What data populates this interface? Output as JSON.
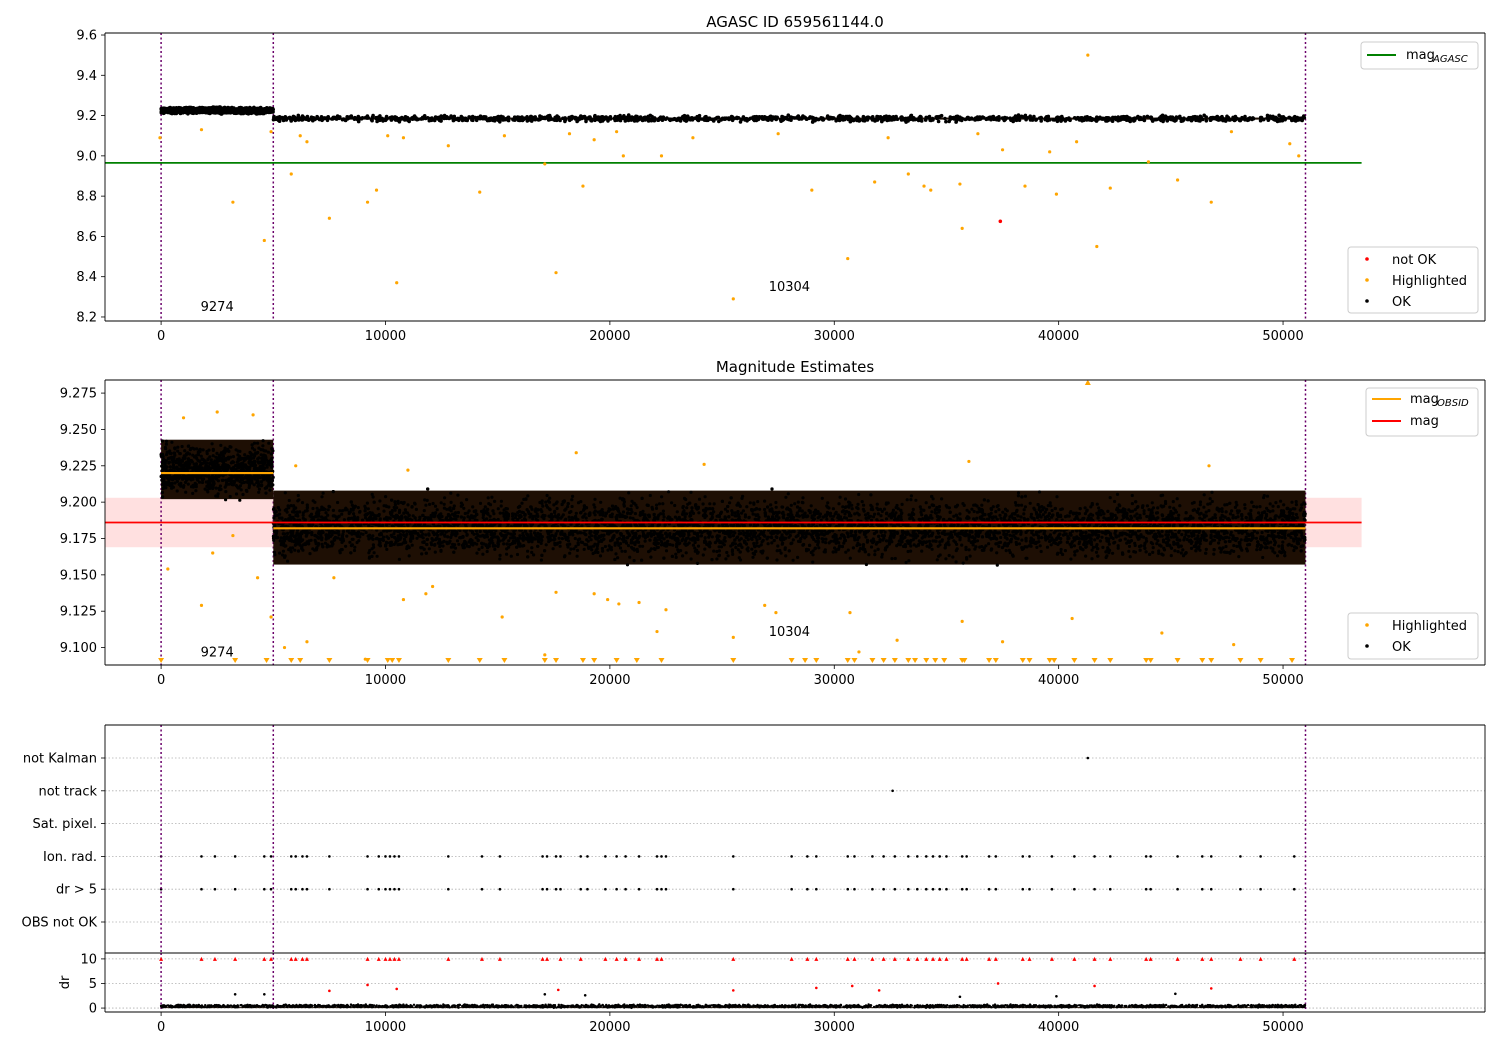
{
  "chart_data": [
    {
      "type": "scatter",
      "title": "AGASC ID 659561144.0",
      "xlim": [
        -2500,
        59000
      ],
      "ylim": [
        8.18,
        9.61
      ],
      "x_ticks": [
        0,
        10000,
        20000,
        30000,
        40000,
        50000
      ],
      "y_ticks": [
        8.2,
        8.4,
        8.6,
        8.8,
        9.0,
        9.2,
        9.4,
        9.6
      ],
      "y_tick_decimals": 1,
      "grid": false,
      "line_legend": {
        "placement": "top-right",
        "entries": [
          {
            "label": "mag",
            "sub": "AGASC",
            "color": "#008000"
          }
        ]
      },
      "point_legend": {
        "placement": "bottom-right",
        "entries": [
          {
            "label": "not OK",
            "color": "#ff0000"
          },
          {
            "label": "Highlighted",
            "color": "#ffa500"
          },
          {
            "label": "OK",
            "color": "#000000"
          }
        ]
      },
      "obsid_boundaries": [
        0,
        5000,
        51000
      ],
      "obsid_labels": [
        {
          "text": "9274",
          "x": 2500,
          "y": 8.23
        },
        {
          "text": "10304",
          "x": 28000,
          "y": 8.33
        }
      ],
      "reference_lines": [
        {
          "name": "mag_AGASC",
          "y": 8.965,
          "x": [
            -2500,
            53500
          ],
          "color": "#008000"
        }
      ],
      "ok_band": [
        {
          "x": [
            0,
            5000
          ],
          "y": [
            9.205,
            9.245
          ]
        },
        {
          "x": [
            5000,
            51000
          ],
          "y": [
            9.165,
            9.205
          ]
        }
      ],
      "highlighted_points": [
        [
          -50,
          9.09
        ],
        [
          1800,
          9.13
        ],
        [
          3200,
          8.77
        ],
        [
          4600,
          8.58
        ],
        [
          4900,
          9.12
        ],
        [
          5800,
          8.91
        ],
        [
          6200,
          9.1
        ],
        [
          6500,
          9.07
        ],
        [
          7500,
          8.69
        ],
        [
          9200,
          8.77
        ],
        [
          9600,
          8.83
        ],
        [
          10100,
          9.1
        ],
        [
          10500,
          8.37
        ],
        [
          10800,
          9.09
        ],
        [
          12800,
          9.05
        ],
        [
          14200,
          8.82
        ],
        [
          15300,
          9.1
        ],
        [
          17100,
          8.96
        ],
        [
          17600,
          8.42
        ],
        [
          18200,
          9.11
        ],
        [
          18800,
          8.85
        ],
        [
          19300,
          9.08
        ],
        [
          20300,
          9.12
        ],
        [
          20600,
          9.0
        ],
        [
          22300,
          9.0
        ],
        [
          23700,
          9.09
        ],
        [
          25500,
          8.29
        ],
        [
          27500,
          9.11
        ],
        [
          29000,
          8.83
        ],
        [
          30600,
          8.49
        ],
        [
          31800,
          8.87
        ],
        [
          32400,
          9.09
        ],
        [
          33300,
          8.91
        ],
        [
          34000,
          8.85
        ],
        [
          34300,
          8.83
        ],
        [
          35600,
          8.86
        ],
        [
          35700,
          8.64
        ],
        [
          36400,
          9.11
        ],
        [
          37500,
          9.03
        ],
        [
          38500,
          8.85
        ],
        [
          39600,
          9.02
        ],
        [
          39900,
          8.81
        ],
        [
          40800,
          9.07
        ],
        [
          41300,
          9.5
        ],
        [
          41700,
          8.55
        ],
        [
          42300,
          8.84
        ],
        [
          44000,
          8.97
        ],
        [
          45300,
          8.88
        ],
        [
          46800,
          8.77
        ],
        [
          47700,
          9.12
        ],
        [
          50300,
          9.06
        ],
        [
          50700,
          9.0
        ]
      ],
      "not_ok_points": [
        [
          37400,
          8.675
        ]
      ]
    },
    {
      "type": "scatter",
      "title": "Magnitude Estimates",
      "xlim": [
        -2500,
        59000
      ],
      "ylim": [
        9.088,
        9.284
      ],
      "x_ticks": [
        0,
        10000,
        20000,
        30000,
        40000,
        50000
      ],
      "y_ticks": [
        9.1,
        9.125,
        9.15,
        9.175,
        9.2,
        9.225,
        9.25,
        9.275
      ],
      "y_tick_decimals": 3,
      "grid": false,
      "line_legend": {
        "placement": "top-right",
        "entries": [
          {
            "label": "mag",
            "sub": "OBSID",
            "color": "#ffa500"
          },
          {
            "label": "mag",
            "color": "#ff0000"
          }
        ]
      },
      "point_legend": {
        "placement": "bottom-right",
        "entries": [
          {
            "label": "Highlighted",
            "color": "#ffa500"
          },
          {
            "label": "OK",
            "color": "#000000"
          }
        ]
      },
      "obsid_boundaries": [
        0,
        5000,
        51000
      ],
      "obsid_labels": [
        {
          "text": "9274",
          "x": 2500,
          "y": 9.094
        },
        {
          "text": "10304",
          "x": 28000,
          "y": 9.108
        }
      ],
      "mag_band": {
        "x": [
          -2500,
          53500
        ],
        "y": [
          9.169,
          9.203
        ],
        "color": "#ff0000"
      },
      "reference_lines": [
        {
          "name": "mag",
          "y": 9.186,
          "x": [
            -2500,
            53500
          ],
          "color": "#ff0000"
        }
      ],
      "obsid_means": [
        {
          "x": [
            0,
            5000
          ],
          "y": 9.22
        },
        {
          "x": [
            5000,
            51000
          ],
          "y": 9.182
        }
      ],
      "ok_band": [
        {
          "x": [
            0,
            5000
          ],
          "y": [
            9.2,
            9.245
          ]
        },
        {
          "x": [
            5000,
            51000
          ],
          "y": [
            9.155,
            9.21
          ]
        }
      ],
      "highlighted_points": [
        [
          300,
          9.154
        ],
        [
          1800,
          9.129
        ],
        [
          2300,
          9.165
        ],
        [
          3200,
          9.177
        ],
        [
          4300,
          9.148
        ],
        [
          4900,
          9.121
        ],
        [
          5500,
          9.1
        ],
        [
          6500,
          9.104
        ],
        [
          7700,
          9.148
        ],
        [
          9100,
          9.092
        ],
        [
          10800,
          9.133
        ],
        [
          11800,
          9.137
        ],
        [
          12100,
          9.142
        ],
        [
          15200,
          9.121
        ],
        [
          17100,
          9.095
        ],
        [
          17600,
          9.138
        ],
        [
          19300,
          9.137
        ],
        [
          19900,
          9.133
        ],
        [
          20400,
          9.13
        ],
        [
          21300,
          9.131
        ],
        [
          22100,
          9.111
        ],
        [
          22500,
          9.126
        ],
        [
          25500,
          9.107
        ],
        [
          26900,
          9.129
        ],
        [
          27400,
          9.124
        ],
        [
          30700,
          9.124
        ],
        [
          31100,
          9.097
        ],
        [
          32800,
          9.105
        ],
        [
          35700,
          9.118
        ],
        [
          37500,
          9.104
        ],
        [
          40600,
          9.12
        ],
        [
          41300,
          9.282
        ],
        [
          44600,
          9.11
        ],
        [
          47800,
          9.102
        ],
        [
          1000,
          9.258
        ],
        [
          2500,
          9.262
        ],
        [
          4100,
          9.26
        ],
        [
          6000,
          9.225
        ],
        [
          11000,
          9.222
        ],
        [
          18500,
          9.234
        ],
        [
          24200,
          9.226
        ],
        [
          36000,
          9.228
        ],
        [
          46700,
          9.225
        ]
      ],
      "below_axis_markers_x": [
        0,
        3300,
        4700,
        5800,
        6200,
        7500,
        9200,
        10100,
        10300,
        10600,
        12800,
        14200,
        15300,
        17100,
        17600,
        18800,
        19300,
        20300,
        21200,
        22300,
        25500,
        28100,
        28700,
        29200,
        30600,
        30900,
        31700,
        32200,
        32700,
        33300,
        33600,
        34100,
        34500,
        34900,
        35700,
        35800,
        36900,
        37200,
        38400,
        38700,
        39600,
        39800,
        40700,
        41600,
        42300,
        43900,
        44100,
        45300,
        46400,
        46800,
        48100,
        49000,
        50400
      ]
    },
    {
      "type": "scatter",
      "title": "",
      "xlim": [
        -2500,
        59000
      ],
      "categories": [
        "not Kalman",
        "not track",
        "Sat. pixel.",
        "Ion. rad.",
        "dr > 5",
        "OBS not OK"
      ],
      "grid": "horizontal dotted",
      "obsid_boundaries": [
        0,
        5000,
        51000
      ],
      "flag_points": {
        "not Kalman": [
          41300
        ],
        "not track": [
          32600
        ],
        "Sat. pixel.": [],
        "Ion. rad.": [
          0,
          1800,
          2400,
          3300,
          4600,
          4900,
          5800,
          6000,
          6300,
          6500,
          7500,
          9200,
          9700,
          10000,
          10200,
          10400,
          10600,
          12800,
          14300,
          15100,
          17000,
          17200,
          17600,
          17800,
          18700,
          19000,
          19800,
          20300,
          20700,
          21300,
          22100,
          22300,
          22500,
          25500,
          28100,
          28800,
          29200,
          30600,
          30900,
          31700,
          32200,
          32700,
          33300,
          33700,
          34100,
          34400,
          34700,
          35000,
          35700,
          35900,
          36900,
          37200,
          38400,
          38700,
          39700,
          40700,
          41600,
          42300,
          43900,
          44100,
          45300,
          46400,
          46800,
          48100,
          49000,
          50500
        ],
        "dr > 5": [
          0,
          1800,
          2400,
          3300,
          4600,
          4900,
          5800,
          6000,
          6300,
          6500,
          7500,
          9200,
          9700,
          10000,
          10200,
          10400,
          10600,
          12800,
          14300,
          15100,
          17000,
          17200,
          17600,
          17800,
          18700,
          19000,
          19800,
          20300,
          20700,
          21300,
          22100,
          22300,
          22500,
          25500,
          28100,
          28800,
          29200,
          30600,
          30900,
          31700,
          32200,
          32700,
          33300,
          33700,
          34100,
          34400,
          34700,
          35000,
          35700,
          35900,
          36900,
          37200,
          38400,
          38700,
          39700,
          40700,
          41600,
          42300,
          43900,
          44100,
          45300,
          46400,
          46800,
          48100,
          49000,
          50500
        ],
        "OBS not OK": []
      }
    },
    {
      "type": "scatter",
      "title": "",
      "ylabel": "dr",
      "xlim": [
        -2500,
        59000
      ],
      "ylim": [
        -0.8,
        11.2
      ],
      "x_ticks": [
        0,
        10000,
        20000,
        30000,
        40000,
        50000
      ],
      "y_ticks": [
        0,
        5,
        10
      ],
      "y_tick_decimals": 0,
      "grid": "horizontal dotted",
      "obsid_boundaries": [
        0,
        5000,
        51000
      ],
      "ok_band": {
        "x": [
          0,
          51000
        ],
        "y": [
          0,
          0.8
        ]
      },
      "capped_points_y": 10,
      "capped_points_x": [
        0,
        1800,
        2400,
        3300,
        4600,
        4900,
        5800,
        6000,
        6300,
        6500,
        9200,
        9700,
        10000,
        10200,
        10400,
        10600,
        12800,
        14300,
        15100,
        17000,
        17200,
        17800,
        18700,
        19800,
        20300,
        20700,
        21300,
        22100,
        22300,
        25500,
        28100,
        28800,
        29200,
        30600,
        30900,
        31700,
        32200,
        32700,
        33300,
        33700,
        34100,
        34400,
        34700,
        35000,
        35700,
        35900,
        36900,
        37200,
        38400,
        38700,
        39700,
        40700,
        41600,
        42300,
        43900,
        44100,
        45300,
        46400,
        46800,
        48100,
        49000,
        50500
      ],
      "outlier_points_red": [
        [
          7500,
          3.5
        ],
        [
          9200,
          4.7
        ],
        [
          10500,
          3.9
        ],
        [
          17700,
          3.7
        ],
        [
          25500,
          3.6
        ],
        [
          29200,
          4.1
        ],
        [
          30800,
          4.5
        ],
        [
          32000,
          3.6
        ],
        [
          37300,
          5.0
        ],
        [
          41600,
          4.5
        ],
        [
          46800,
          4.0
        ]
      ],
      "outlier_points_black": [
        [
          3300,
          2.8
        ],
        [
          4600,
          2.8
        ],
        [
          17100,
          2.8
        ],
        [
          18900,
          2.6
        ],
        [
          35600,
          2.3
        ],
        [
          39900,
          2.4
        ],
        [
          45200,
          2.9
        ]
      ]
    }
  ]
}
